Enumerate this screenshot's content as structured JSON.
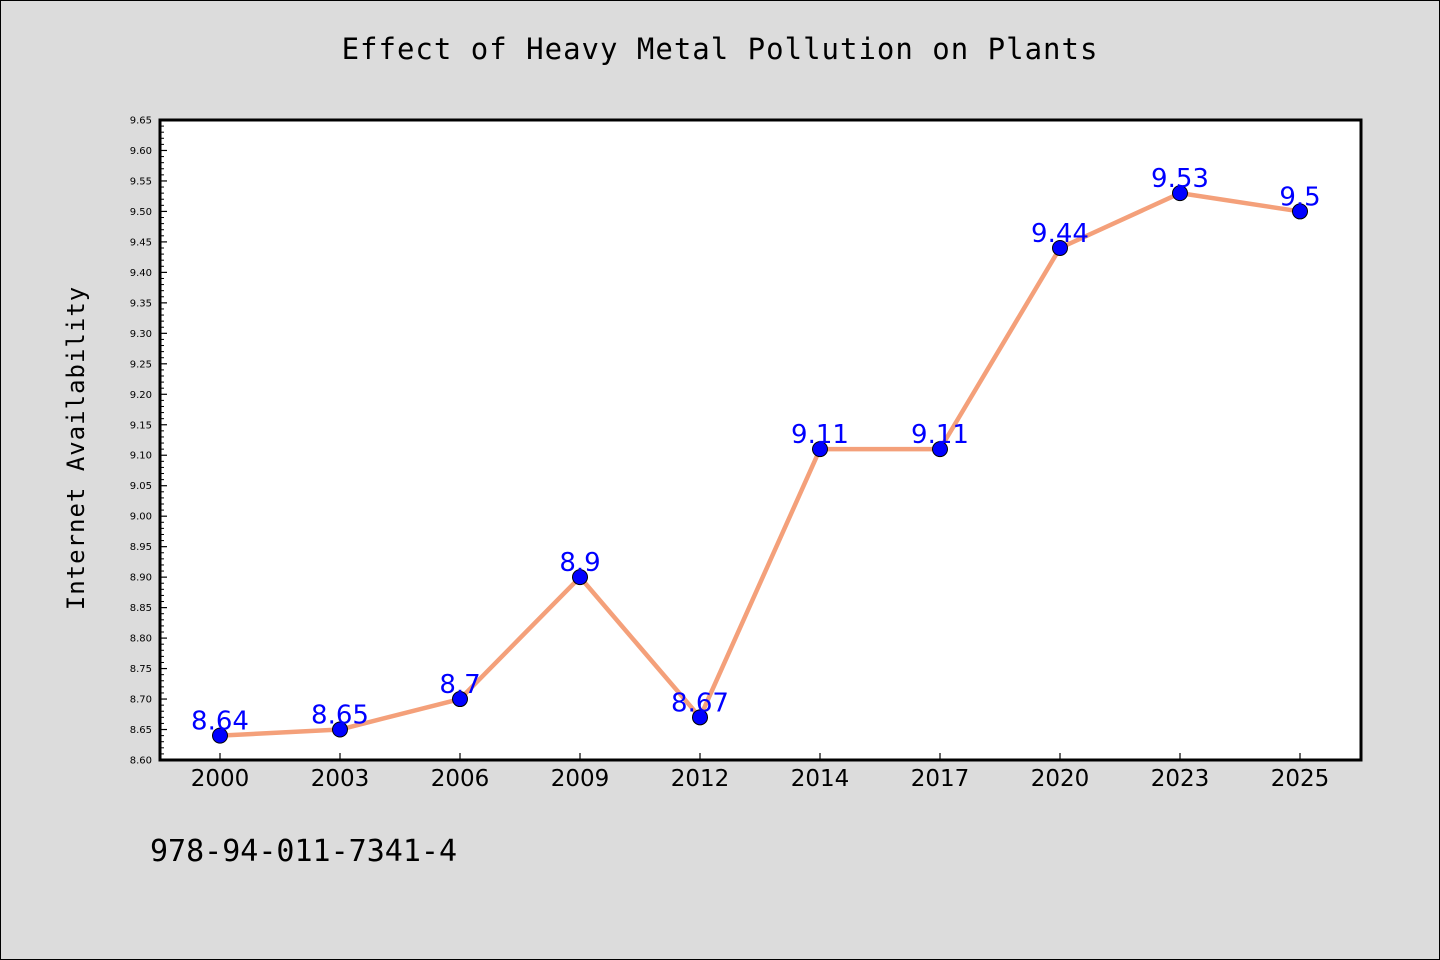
{
  "chart_data": {
    "type": "line",
    "title": "Effect of Heavy Metal Pollution on Plants",
    "xlabel": "",
    "ylabel": "Internet Availability",
    "categories": [
      "2000",
      "2003",
      "2006",
      "2009",
      "2012",
      "2014",
      "2017",
      "2020",
      "2023",
      "2025"
    ],
    "series": [
      {
        "values": [
          8.64,
          8.65,
          8.7,
          8.9,
          8.67,
          9.11,
          9.11,
          9.44,
          9.53,
          9.5
        ],
        "labels": [
          "8.64",
          "8.65",
          "8.7",
          "8.9",
          "8.67",
          "9.11",
          "9.11",
          "9.44",
          "9.53",
          "9.5"
        ],
        "line_color": "#f4a07a",
        "marker_color": "#0000ff"
      }
    ],
    "ylim": [
      8.6,
      9.65
    ],
    "yticks": [
      "8.60",
      "8.65",
      "8.70",
      "8.75",
      "8.80",
      "8.85",
      "8.90",
      "8.95",
      "9.00",
      "9.05",
      "9.10",
      "9.15",
      "9.20",
      "9.25",
      "9.30",
      "9.35",
      "9.40",
      "9.45",
      "9.50",
      "9.55",
      "9.60",
      "9.65"
    ],
    "grid": false,
    "legend": "none"
  },
  "footnote": "978-94-011-7341-4",
  "colors": {
    "background": "#dcdcdc",
    "plot_background": "#ffffff",
    "line": "#f4a07a",
    "marker": "#0000ff",
    "data_label": "#0000ff"
  }
}
